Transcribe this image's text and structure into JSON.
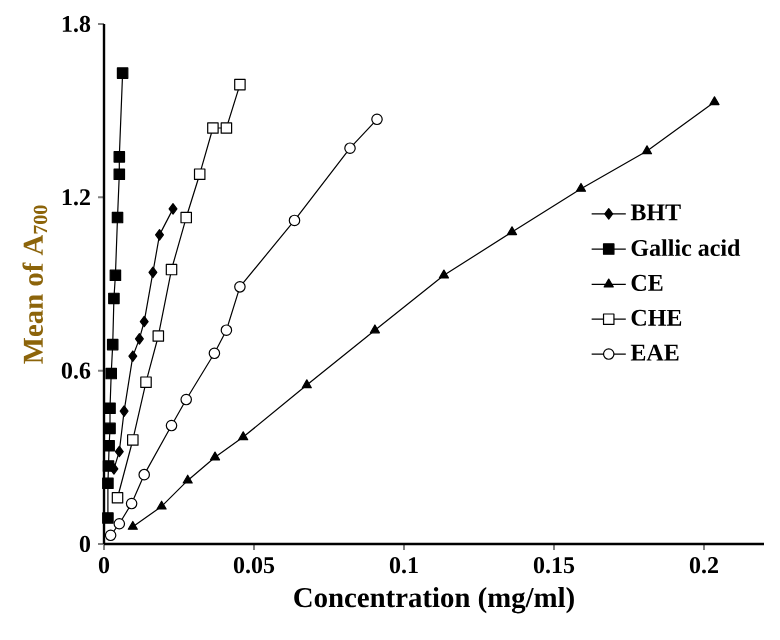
{
  "chart_data": {
    "type": "line",
    "xlabel": "Concentration (mg/ml)",
    "ylabel": "Mean of A$_{700}$",
    "xlim": [
      0,
      0.22
    ],
    "ylim": [
      0,
      1.8
    ],
    "xticks": [
      0,
      0.05,
      0.1,
      0.15,
      0.2
    ],
    "yticks": [
      0,
      0.6,
      1.2,
      1.8
    ],
    "legend": "right",
    "grid": false,
    "line_style": "solid",
    "series": [
      {
        "name": "BHT",
        "color": "#000000",
        "marker": "diamond",
        "x": [
          0.0033,
          0.0051,
          0.0067,
          0.0096,
          0.0118,
          0.0134,
          0.0163,
          0.0185,
          0.023
        ],
        "values": [
          0.26,
          0.32,
          0.46,
          0.65,
          0.71,
          0.77,
          0.94,
          1.07,
          1.16
        ]
      },
      {
        "name": "Gallic acid",
        "color": "#000000",
        "marker": "square",
        "x": [
          0.0013,
          0.0013,
          0.0015,
          0.0017,
          0.002,
          0.002,
          0.0024,
          0.0029,
          0.0033,
          0.0038,
          0.0045,
          0.0051,
          0.0051,
          0.0062
        ],
        "values": [
          0.09,
          0.21,
          0.27,
          0.34,
          0.4,
          0.47,
          0.59,
          0.69,
          0.85,
          0.93,
          1.13,
          1.28,
          1.34,
          1.63
        ]
      },
      {
        "name": "CE",
        "color": "#000000",
        "marker": "triangle",
        "x": [
          0.0096,
          0.0192,
          0.0279,
          0.037,
          0.0464,
          0.0676,
          0.0903,
          0.1133,
          0.136,
          0.159,
          0.181,
          0.2035
        ],
        "values": [
          0.06,
          0.13,
          0.22,
          0.3,
          0.37,
          0.55,
          0.74,
          0.93,
          1.08,
          1.23,
          1.36,
          1.53
        ]
      },
      {
        "name": "CHE",
        "color": "#000000",
        "marker": "square",
        "x": [
          0.0045,
          0.0096,
          0.014,
          0.0181,
          0.0225,
          0.0274,
          0.0319,
          0.0363,
          0.0408,
          0.0453
        ],
        "values": [
          0.16,
          0.36,
          0.56,
          0.72,
          0.95,
          1.13,
          1.28,
          1.44,
          1.44,
          1.59
        ]
      },
      {
        "name": "EAE",
        "color": "#000000",
        "marker": "circle",
        "x": [
          0.0022,
          0.0051,
          0.0092,
          0.0134,
          0.0225,
          0.0274,
          0.0368,
          0.0408,
          0.0453,
          0.0635,
          0.082,
          0.091
        ],
        "values": [
          0.03,
          0.07,
          0.14,
          0.24,
          0.41,
          0.5,
          0.66,
          0.74,
          0.89,
          1.12,
          1.37,
          1.47
        ]
      }
    ]
  }
}
